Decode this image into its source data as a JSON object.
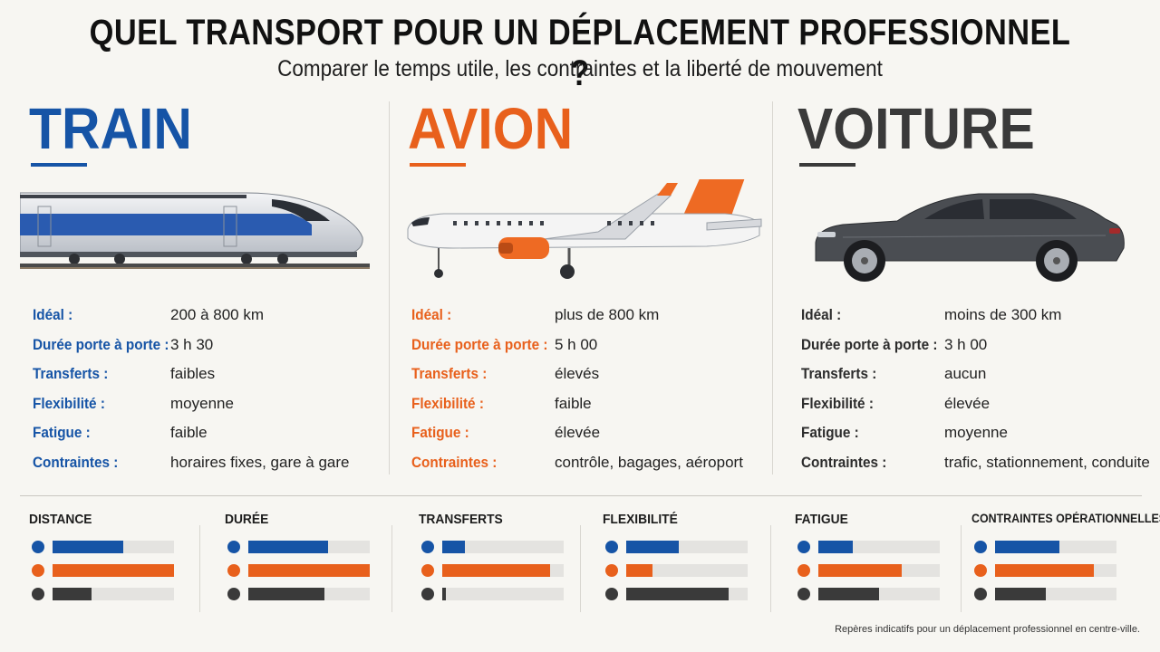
{
  "title": "QUEL TRANSPORT POUR UN DÉPLACEMENT PROFESSIONNEL  ?",
  "subtitle": "Comparer le temps utile, les contraintes et la liberté de mouvement",
  "colors": {
    "train": "#1654a6",
    "avion": "#e8601c",
    "voiture": "#3a3a3a"
  },
  "modes": [
    {
      "name": "TRAIN",
      "icon": "train-icon",
      "specs": [
        {
          "label": "Idéal :",
          "value": "200 à 800 km"
        },
        {
          "label": "Durée porte à porte :",
          "value": "3 h 30"
        },
        {
          "label": "Transferts :",
          "value": "faibles"
        },
        {
          "label": "Flexibilité :",
          "value": "moyenne"
        },
        {
          "label": "Fatigue :",
          "value": "faible"
        },
        {
          "label": "Contraintes :",
          "value": "horaires fixes, gare à gare"
        }
      ]
    },
    {
      "name": "AVION",
      "icon": "airplane-icon",
      "specs": [
        {
          "label": "Idéal :",
          "value": "plus de 800 km"
        },
        {
          "label": "Durée porte à porte :",
          "value": "5 h 00"
        },
        {
          "label": "Transferts :",
          "value": "élevés"
        },
        {
          "label": "Flexibilité :",
          "value": "faible"
        },
        {
          "label": "Fatigue :",
          "value": "élevée"
        },
        {
          "label": "Contraintes :",
          "value": "contrôle, bagages, aéroport"
        }
      ]
    },
    {
      "name": "VOITURE",
      "icon": "car-icon",
      "specs": [
        {
          "label": "Idéal :",
          "value": "moins de 300 km"
        },
        {
          "label": "Durée porte à porte :",
          "value": "3 h 00"
        },
        {
          "label": "Transferts :",
          "value": "aucun"
        },
        {
          "label": "Flexibilité :",
          "value": "élevée"
        },
        {
          "label": "Fatigue :",
          "value": "moyenne"
        },
        {
          "label": "Contraintes :",
          "value": "trafic, stationnement, conduite"
        }
      ]
    }
  ],
  "metrics": [
    {
      "title": "DISTANCE",
      "levels": [
        0.58,
        1.0,
        0.32
      ]
    },
    {
      "title": "DURÉE",
      "levels": [
        0.66,
        1.0,
        0.63
      ]
    },
    {
      "title": "TRANSFERTS",
      "levels": [
        0.19,
        0.89,
        0.03
      ]
    },
    {
      "title": "FLEXIBILITÉ",
      "levels": [
        0.43,
        0.22,
        0.84
      ]
    },
    {
      "title": "FATIGUE",
      "levels": [
        0.28,
        0.69,
        0.5
      ]
    },
    {
      "title": "CONTRAINTES OPÉRATIONNELLES",
      "levels": [
        0.53,
        0.81,
        0.42
      ]
    }
  ],
  "footnote": "Repères indicatifs pour un déplacement professionnel en centre-ville."
}
